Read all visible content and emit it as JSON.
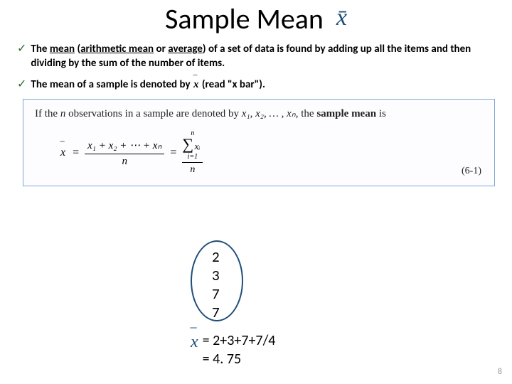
{
  "title": {
    "text": "Sample Mean",
    "xbar_symbol": "x̄",
    "xbar_color": "#1f4e79",
    "title_fontsize": 40
  },
  "bullets": [
    {
      "check": "✓",
      "html_parts": [
        "The ",
        "<b><u>mean</u></b>",
        "  (",
        "<b><u>arithmetic mean</u></b>",
        " or ",
        "<b><u>average</u></b>",
        ") of a set of data is found by adding up all the items and then dividing by the sum of the number of items."
      ]
    },
    {
      "check": "✓",
      "prefix": "The mean of a sample is denoted by ",
      "has_xbar": true,
      "suffix": " (read \"x bar\")."
    }
  ],
  "formula_box": {
    "border_color": "#7fa6d9",
    "intro_prefix": "If the ",
    "intro_n": "n",
    "intro_mid": " observations in a sample are denoted by ",
    "intro_list": "x₁, x₂, … , xₙ",
    "intro_suffix": ", the ",
    "intro_bold": "sample mean",
    "intro_end": " is",
    "lhs": "x",
    "frac_num": "x₁ + x₂ + ⋯ + xₙ",
    "frac_den": "n",
    "sum_top": "n",
    "sum_var": "xᵢ",
    "sum_bot": "i=1",
    "sum_den": "n",
    "eq_ref": "(6-1)"
  },
  "sample_data": {
    "ellipse_color": "#1f4e79",
    "values": [
      "2",
      "3",
      "7",
      "7"
    ]
  },
  "calc": {
    "xbar_color": "#1f4e79",
    "line1": "= 2+3+7+7/4",
    "line2": "= 4. 75"
  },
  "page_number": "8"
}
